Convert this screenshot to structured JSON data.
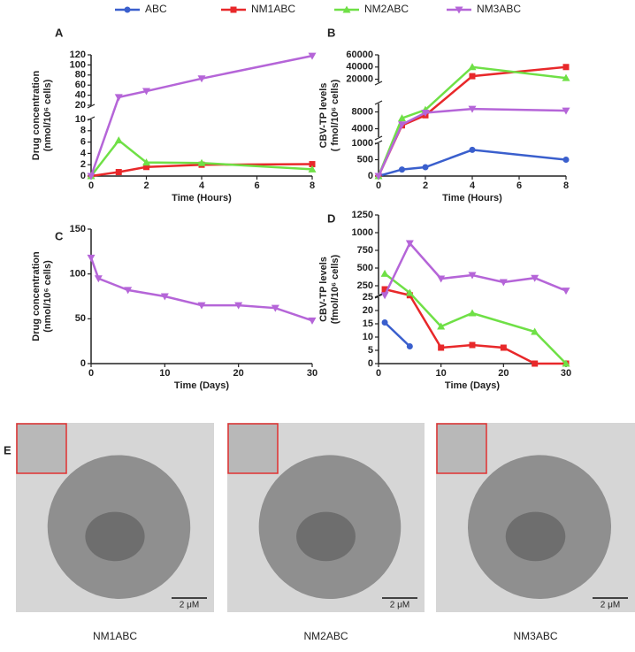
{
  "chart_data": [
    {
      "type": "line",
      "panel_label": "A",
      "xlabel": "Time (Hours)",
      "ylabel": [
        "Drug concentration",
        "(nmol/10⁶ cells)"
      ],
      "x": [
        0,
        1,
        2,
        4,
        8
      ],
      "xlim": [
        0,
        8
      ],
      "xticks": [
        0,
        2,
        4,
        6,
        8
      ],
      "y_segments": [
        {
          "ylim": [
            0,
            10
          ],
          "yticks": [
            0,
            2,
            4,
            6,
            8,
            10
          ]
        },
        {
          "ylim": [
            20,
            120
          ],
          "yticks": [
            20,
            40,
            60,
            80,
            100,
            120
          ]
        }
      ],
      "series": [
        {
          "name": "NM1ABC",
          "color": "#e8282a",
          "marker": "square",
          "values": [
            0,
            0.7,
            1.6,
            2.0,
            2.1
          ]
        },
        {
          "name": "NM2ABC",
          "color": "#6fe046",
          "marker": "triangle",
          "values": [
            0,
            6.3,
            2.4,
            2.3,
            1.2
          ]
        },
        {
          "name": "NM3ABC",
          "color": "#b565d8",
          "marker": "triangle-down",
          "values": [
            0,
            36,
            48,
            73,
            118
          ]
        }
      ]
    },
    {
      "type": "line",
      "panel_label": "B",
      "xlabel": "Time (Hours)",
      "ylabel": [
        "CBV-TP  levels",
        "( fmol/10⁶ cells)"
      ],
      "x": [
        0,
        1,
        2,
        4,
        8
      ],
      "xlim": [
        0,
        8
      ],
      "xticks": [
        0,
        2,
        4,
        6,
        8
      ],
      "y_segments": [
        {
          "ylim": [
            0,
            1000
          ],
          "yticks": [
            0,
            500,
            1000
          ]
        },
        {
          "ylim": [
            2000,
            10000
          ],
          "yticks": [
            4000,
            8000
          ]
        },
        {
          "ylim": [
            15000,
            60000
          ],
          "yticks": [
            20000,
            40000,
            60000
          ]
        }
      ],
      "series": [
        {
          "name": "ABC",
          "color": "#3a5fcd",
          "marker": "circle",
          "values": [
            0,
            200,
            270,
            800,
            500
          ]
        },
        {
          "name": "NM1ABC",
          "color": "#e8282a",
          "marker": "square",
          "values": [
            0,
            4800,
            7200,
            25000,
            40000
          ]
        },
        {
          "name": "NM2ABC",
          "color": "#6fe046",
          "marker": "triangle",
          "values": [
            0,
            6500,
            8500,
            40000,
            22000
          ]
        },
        {
          "name": "NM3ABC",
          "color": "#b565d8",
          "marker": "triangle-down",
          "values": [
            0,
            5000,
            7800,
            8700,
            8300
          ]
        }
      ]
    },
    {
      "type": "line",
      "panel_label": "C",
      "xlabel": "Time (Days)",
      "ylabel": [
        "Drug concentration",
        "(nmol/10⁶ cells)"
      ],
      "x": [
        0,
        1,
        5,
        10,
        15,
        20,
        25,
        30
      ],
      "xlim": [
        0,
        30
      ],
      "xticks": [
        0,
        10,
        20,
        30
      ],
      "ylim": [
        0,
        150
      ],
      "yticks": [
        0,
        50,
        100,
        150
      ],
      "series": [
        {
          "name": "NM3ABC",
          "color": "#b565d8",
          "marker": "triangle-down",
          "values": [
            118,
            95,
            82,
            75,
            65,
            65,
            62,
            48
          ]
        }
      ]
    },
    {
      "type": "line",
      "panel_label": "D",
      "xlabel": "Time (Days)",
      "ylabel": [
        "CBV-TP levels",
        "(fmol/10⁶ cells)"
      ],
      "xlim": [
        0,
        30
      ],
      "xticks": [
        0,
        10,
        20,
        30
      ],
      "y_segments": [
        {
          "ylim": [
            0,
            25
          ],
          "yticks": [
            0,
            5,
            10,
            15,
            20,
            25
          ]
        },
        {
          "ylim": [
            125,
            1250
          ],
          "yticks": [
            250,
            500,
            750,
            1000,
            1250
          ]
        }
      ],
      "series": [
        {
          "name": "ABC",
          "color": "#3a5fcd",
          "marker": "circle",
          "x": [
            1,
            5
          ],
          "values": [
            15.5,
            6.5
          ]
        },
        {
          "name": "NM1ABC",
          "color": "#e8282a",
          "marker": "square",
          "x": [
            1,
            5,
            10,
            15,
            20,
            25,
            30
          ],
          "values": [
            200,
            100,
            6,
            7,
            6,
            0,
            0
          ]
        },
        {
          "name": "NM2ABC",
          "color": "#6fe046",
          "marker": "triangle",
          "x": [
            1,
            5,
            10,
            15,
            25,
            30
          ],
          "values": [
            420,
            150,
            14,
            19,
            12,
            0
          ]
        },
        {
          "name": "NM3ABC",
          "color": "#b565d8",
          "marker": "triangle-down",
          "x": [
            1,
            5,
            10,
            15,
            20,
            25,
            30
          ],
          "values": [
            100,
            850,
            350,
            400,
            300,
            360,
            180
          ]
        }
      ]
    }
  ],
  "figure_e": {
    "panel_label": "E",
    "images": [
      {
        "caption": "NM1ABC",
        "scale_bar": "2 μM"
      },
      {
        "caption": "NM2ABC",
        "scale_bar": "2 μM"
      },
      {
        "caption": "NM3ABC",
        "scale_bar": "2 μM"
      }
    ]
  }
}
